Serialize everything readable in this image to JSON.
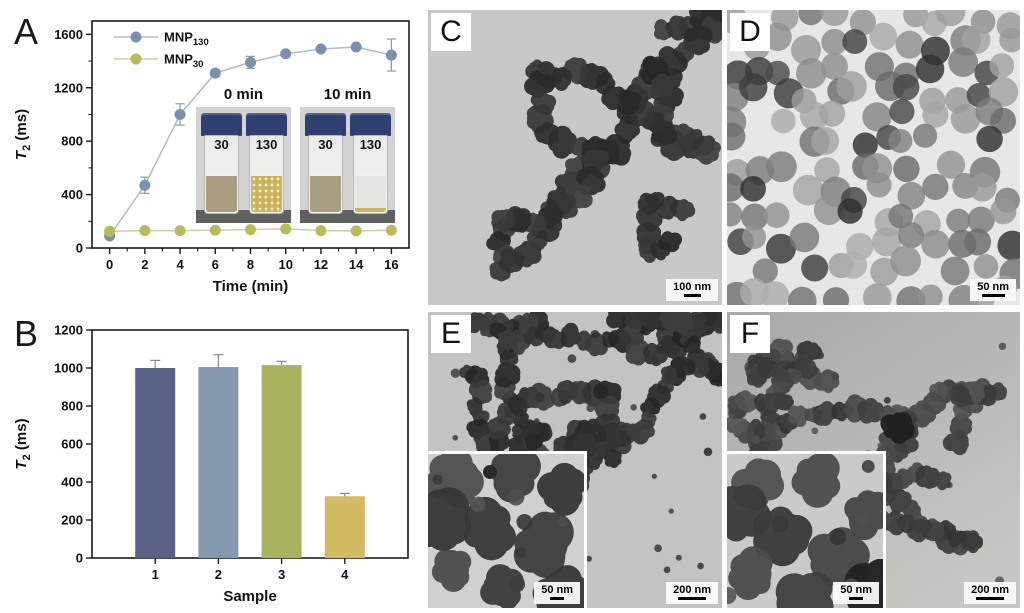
{
  "figure": {
    "panels": {
      "A": {
        "label": "A"
      },
      "B": {
        "label": "B"
      },
      "C": {
        "label": "C",
        "scale_bar": "100 nm"
      },
      "D": {
        "label": "D",
        "scale_bar": "50 nm"
      },
      "E": {
        "label": "E",
        "scale_bar": "200 nm",
        "inset_scale_bar": "50 nm"
      },
      "F": {
        "label": "F",
        "scale_bar": "200 nm",
        "inset_scale_bar": "50 nm"
      }
    }
  },
  "chart_data": [
    {
      "type": "line",
      "panel": "A",
      "xlabel": "Time (min)",
      "ylabel_main": "T",
      "ylabel_sub": "2",
      "ylabel_rest": " (ms)",
      "x": [
        0,
        2,
        4,
        6,
        8,
        10,
        12,
        14,
        16
      ],
      "xlim": [
        -1,
        17
      ],
      "ylim": [
        0,
        1700
      ],
      "xticks": [
        0,
        2,
        4,
        6,
        8,
        10,
        12,
        14,
        16
      ],
      "xminor": [
        1,
        3,
        5,
        7,
        9,
        11,
        13,
        15
      ],
      "yticks": [
        0,
        400,
        800,
        1200,
        1600
      ],
      "yminor": [
        200,
        600,
        1000,
        1400
      ],
      "grid": false,
      "legend_position": "top-left",
      "series": [
        {
          "label_main": "MNP",
          "label_sub": "130",
          "color": "#7b90ab",
          "line_color": "#b3bac2",
          "err_color": "#8e9aa9",
          "values": [
            90,
            470,
            1000,
            1310,
            1390,
            1455,
            1490,
            1505,
            1445
          ],
          "errors": [
            18,
            60,
            80,
            25,
            45,
            15,
            15,
            15,
            120
          ]
        },
        {
          "label_main": "MNP",
          "label_sub": "30",
          "color": "#b8bb5a",
          "line_color": "#cdd0a2",
          "err_color": "#b0b377",
          "values": [
            125,
            130,
            130,
            133,
            138,
            143,
            130,
            128,
            133
          ],
          "errors": [
            8,
            8,
            8,
            8,
            8,
            8,
            8,
            8,
            8
          ]
        }
      ],
      "inset": {
        "photos": [
          {
            "label": "0 min",
            "vials": [
              {
                "label": "30",
                "liquid": "#a89e82",
                "speckle": false
              },
              {
                "label": "130",
                "liquid": "#c9b262",
                "speckle": true
              }
            ]
          },
          {
            "label": "10 min",
            "vials": [
              {
                "label": "30",
                "liquid": "#a89e82",
                "speckle": false
              },
              {
                "label": "130",
                "liquid": "#e4e4e1",
                "speckle": false,
                "sediment": "#c9b262"
              }
            ]
          }
        ]
      }
    },
    {
      "type": "bar",
      "panel": "B",
      "xlabel": "Sample",
      "ylabel_main": "T",
      "ylabel_sub": "2",
      "ylabel_rest": " (ms)",
      "categories": [
        "1",
        "2",
        "3",
        "4"
      ],
      "values": [
        1000,
        1005,
        1015,
        325
      ],
      "errors": [
        40,
        65,
        20,
        15
      ],
      "colors": [
        "#5c6286",
        "#8599ae",
        "#a9b35f",
        "#d4ba62"
      ],
      "ylim": [
        0,
        1200
      ],
      "yticks": [
        0,
        200,
        400,
        600,
        800,
        1000,
        1200
      ],
      "grid": false,
      "err_color": "#8a8a8a"
    }
  ]
}
